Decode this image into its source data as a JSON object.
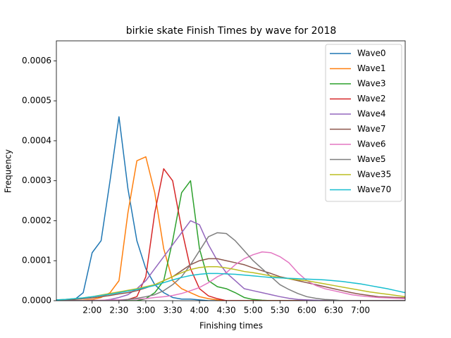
{
  "chart_data": {
    "type": "line",
    "title": "birkie skate Finish Times by wave for 2018",
    "xlabel": "Finishing times",
    "ylabel": "Frequency",
    "xlim": [
      80,
      470
    ],
    "ylim": [
      0,
      0.00065
    ],
    "xticks": [
      {
        "value": 120,
        "label": "2:00"
      },
      {
        "value": 150,
        "label": "2:30"
      },
      {
        "value": 180,
        "label": "3:00"
      },
      {
        "value": 210,
        "label": "3:30"
      },
      {
        "value": 240,
        "label": "4:00"
      },
      {
        "value": 270,
        "label": "4:30"
      },
      {
        "value": 300,
        "label": "5:00"
      },
      {
        "value": 330,
        "label": "5:30"
      },
      {
        "value": 360,
        "label": "6:00"
      },
      {
        "value": 390,
        "label": "6:30"
      },
      {
        "value": 420,
        "label": "7:00"
      }
    ],
    "yticks": [
      {
        "value": 0,
        "label": "0.0000"
      },
      {
        "value": 0.0001,
        "label": "0.0001"
      },
      {
        "value": 0.0002,
        "label": "0.0002"
      },
      {
        "value": 0.0003,
        "label": "0.0003"
      },
      {
        "value": 0.0004,
        "label": "0.0004"
      },
      {
        "value": 0.0005,
        "label": "0.0005"
      },
      {
        "value": 0.0006,
        "label": "0.0006"
      }
    ],
    "legend": "upper right",
    "x": [
      80,
      90,
      100,
      110,
      120,
      130,
      140,
      150,
      160,
      170,
      180,
      190,
      200,
      210,
      220,
      230,
      240,
      250,
      260,
      270,
      280,
      290,
      300,
      310,
      320,
      330,
      340,
      350,
      360,
      370,
      380,
      390,
      400,
      410,
      420,
      430,
      440,
      450,
      460,
      470
    ],
    "series": [
      {
        "name": "Wave0",
        "color": "#1f77b4",
        "values": [
          0,
          0,
          2e-06,
          2e-05,
          0.00012,
          0.00015,
          0.0003,
          0.00046,
          0.00028,
          0.00015,
          8e-05,
          4e-05,
          2e-05,
          8e-06,
          4e-06,
          4e-06,
          2e-06,
          0,
          0,
          0,
          0,
          0,
          0,
          0,
          0,
          0,
          0,
          0,
          0,
          0,
          0,
          0,
          0,
          0,
          0,
          0,
          0,
          0,
          0,
          0
        ]
      },
      {
        "name": "Wave1",
        "color": "#ff7f0e",
        "values": [
          0,
          0,
          0,
          1e-06,
          3e-06,
          8e-06,
          2e-05,
          5e-05,
          0.00022,
          0.00035,
          0.00036,
          0.00027,
          0.00013,
          5e-05,
          3e-05,
          2e-05,
          1e-05,
          5e-06,
          2e-06,
          0,
          0,
          0,
          0,
          0,
          0,
          0,
          0,
          0,
          0,
          0,
          0,
          0,
          0,
          0,
          0,
          0,
          0,
          0,
          0,
          0
        ]
      },
      {
        "name": "Wave3",
        "color": "#2ca02c",
        "values": [
          0,
          0,
          0,
          0,
          0,
          0,
          0,
          0,
          0,
          0,
          5e-06,
          2e-05,
          5e-05,
          0.00015,
          0.00027,
          0.0003,
          0.00013,
          5e-05,
          3.5e-05,
          3e-05,
          2e-05,
          8e-06,
          3e-06,
          1e-06,
          0,
          0,
          0,
          0,
          0,
          0,
          0,
          0,
          0,
          0,
          0,
          0,
          0,
          0,
          0,
          0
        ]
      },
      {
        "name": "Wave2",
        "color": "#d62728",
        "values": [
          0,
          0,
          0,
          0,
          0,
          0,
          0,
          0,
          3e-06,
          1e-05,
          6e-05,
          0.00022,
          0.00033,
          0.0003,
          0.00018,
          8e-05,
          3e-05,
          1.2e-05,
          5e-06,
          0,
          0,
          0,
          0,
          0,
          0,
          0,
          0,
          0,
          0,
          0,
          0,
          0,
          0,
          0,
          0,
          0,
          0,
          0,
          0,
          0
        ]
      },
      {
        "name": "Wave4",
        "color": "#9467bd",
        "values": [
          0,
          0,
          0,
          0,
          0,
          0,
          3e-06,
          8e-06,
          1.5e-05,
          3e-05,
          5e-05,
          8e-05,
          0.00011,
          0.00014,
          0.00017,
          0.0002,
          0.00019,
          0.00014,
          0.0001,
          7e-05,
          5e-05,
          3e-05,
          2.5e-05,
          2e-05,
          1.5e-05,
          1e-05,
          6e-06,
          3e-06,
          2e-06,
          1e-06,
          0,
          0,
          0,
          0,
          0,
          0,
          0,
          0,
          0,
          0
        ]
      },
      {
        "name": "Wave7",
        "color": "#8c564b",
        "values": [
          1e-06,
          2e-06,
          3e-06,
          5e-06,
          7e-06,
          1e-05,
          1.3e-05,
          1.7e-05,
          2e-05,
          2.5e-05,
          3.2e-05,
          4e-05,
          5e-05,
          6e-05,
          7.5e-05,
          9e-05,
          0.0001,
          0.000105,
          0.000105,
          0.0001,
          9.5e-05,
          9e-05,
          8.2e-05,
          7.5e-05,
          6.8e-05,
          6e-05,
          5.5e-05,
          5e-05,
          4.5e-05,
          4e-05,
          3.5e-05,
          3e-05,
          2.5e-05,
          2e-05,
          1.6e-05,
          1.3e-05,
          1e-05,
          9e-06,
          8e-06,
          7e-06
        ]
      },
      {
        "name": "Wave6",
        "color": "#e377c2",
        "values": [
          0,
          0,
          0,
          0,
          1e-06,
          1e-06,
          2e-06,
          2e-06,
          3e-06,
          4e-06,
          5e-06,
          8e-06,
          1e-05,
          1.3e-05,
          1.8e-05,
          2.5e-05,
          3.3e-05,
          4.5e-05,
          6e-05,
          7e-05,
          9e-05,
          0.000105,
          0.000115,
          0.000122,
          0.00012,
          0.00011,
          9.5e-05,
          7e-05,
          5e-05,
          3.8e-05,
          3e-05,
          2.5e-05,
          2e-05,
          1.5e-05,
          1.2e-05,
          1e-05,
          8e-06,
          7e-06,
          6e-06,
          5e-06
        ]
      },
      {
        "name": "Wave5",
        "color": "#7f7f7f",
        "values": [
          0,
          0,
          0,
          0,
          0,
          0,
          0,
          0,
          3e-06,
          6e-06,
          1e-05,
          1.5e-05,
          2.5e-05,
          4e-05,
          6e-05,
          9e-05,
          0.000125,
          0.00016,
          0.00017,
          0.000168,
          0.00015,
          0.000125,
          0.0001,
          8e-05,
          6e-05,
          4e-05,
          2.8e-05,
          1.8e-05,
          1e-05,
          6e-06,
          3e-06,
          2e-06,
          0,
          0,
          0,
          0,
          0,
          0,
          0,
          0
        ]
      },
      {
        "name": "Wave35",
        "color": "#bcbd22",
        "values": [
          2e-06,
          3e-06,
          5e-06,
          7e-06,
          1e-05,
          1.4e-05,
          1.8e-05,
          2.2e-05,
          2.6e-05,
          3e-05,
          3.5e-05,
          4e-05,
          5e-05,
          6e-05,
          7e-05,
          7.8e-05,
          8.3e-05,
          8.5e-05,
          8.5e-05,
          8.2e-05,
          7.8e-05,
          7.3e-05,
          7e-05,
          6.6e-05,
          6.2e-05,
          5.8e-05,
          5.5e-05,
          5.2e-05,
          5e-05,
          4.6e-05,
          4.2e-05,
          3.8e-05,
          3.4e-05,
          3e-05,
          2.6e-05,
          2.2e-05,
          1.9e-05,
          1.6e-05,
          1.3e-05,
          1e-05
        ]
      },
      {
        "name": "Wave70",
        "color": "#17becf",
        "values": [
          2e-06,
          3e-06,
          5e-06,
          7e-06,
          1e-05,
          1.3e-05,
          1.6e-05,
          2e-05,
          2.4e-05,
          2.8e-05,
          3.3e-05,
          3.8e-05,
          4.5e-05,
          5.2e-05,
          5.8e-05,
          6.3e-05,
          6.6e-05,
          6.8e-05,
          6.8e-05,
          6.7e-05,
          6.6e-05,
          6.4e-05,
          6.2e-05,
          6e-05,
          5.8e-05,
          5.7e-05,
          5.6e-05,
          5.5e-05,
          5.4e-05,
          5.3e-05,
          5.2e-05,
          5e-05,
          4.8e-05,
          4.5e-05,
          4.2e-05,
          3.8e-05,
          3.4e-05,
          3e-05,
          2.5e-05,
          2e-05
        ]
      }
    ]
  }
}
